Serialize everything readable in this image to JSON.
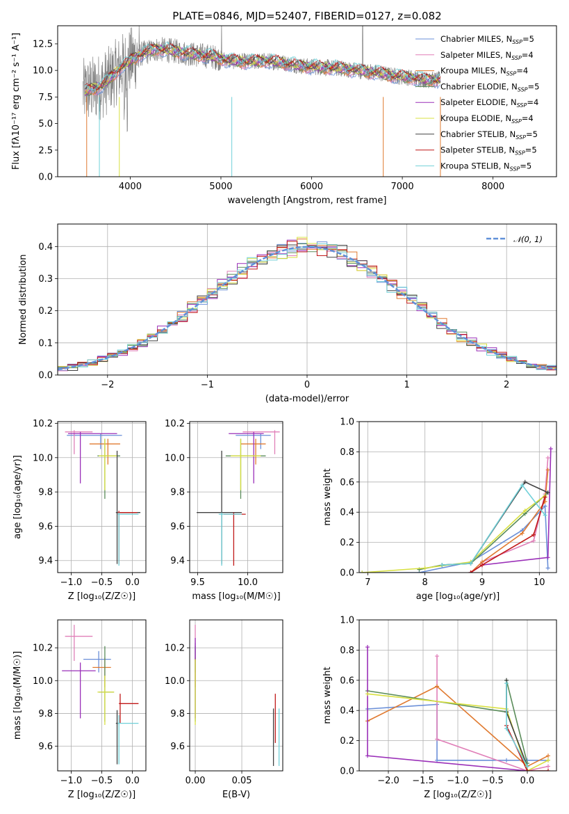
{
  "colors": {
    "spectrum_data": "#808080",
    "chabrier_miles": "#6a8fd8",
    "salpeter_miles": "#e07fb8",
    "kroupa_miles": "#e07a30",
    "chabrier_elodie": "#5a8c5a",
    "salpeter_elodie": "#9a2fb8",
    "kroupa_elodie": "#d8e040",
    "chabrier_stelib": "#404040",
    "salpeter_stelib": "#c01818",
    "kroupa_stelib": "#70d0d8",
    "normal_curve": "#6090d8"
  },
  "chart_data": [
    {
      "id": "spectrum",
      "type": "line",
      "title": "PLATE=0846, MJD=52407, FIBERID=0127, z=0.082",
      "xlabel": "wavelength [Angstrom, rest frame]",
      "ylabel": "Flux [f$_\\lambda$10$^{-17}$ erg cm$^{-2}$ s$^{-1}$ A$^{-1}$]",
      "ylabel_display": "Flux [fλ10⁻¹⁷ erg cm⁻² s⁻¹ A⁻¹]",
      "xlim": [
        3200,
        8700
      ],
      "ylim": [
        0,
        14.2
      ],
      "xticks": [
        "4000",
        "5000",
        "6000",
        "7000",
        "8000"
      ],
      "yticks": [
        "0.0",
        "2.5",
        "5.0",
        "7.5",
        "10.0",
        "12.5"
      ],
      "legend_position": "upper-right",
      "legend": [
        {
          "label": "Chabrier MILES, N",
          "sub": "SSP",
          "suffix": "=5"
        },
        {
          "label": "Salpeter MILES, N",
          "sub": "SSP",
          "suffix": "=4"
        },
        {
          "label": "Kroupa MILES, N",
          "sub": "SSP",
          "suffix": "=4"
        },
        {
          "label": "Chabrier ELODIE, N",
          "sub": "SSP",
          "suffix": "=5"
        },
        {
          "label": "Salpeter ELODIE, N",
          "sub": "SSP",
          "suffix": "=4"
        },
        {
          "label": "Kroupa ELODIE, N",
          "sub": "SSP",
          "suffix": "=4"
        },
        {
          "label": "Chabrier STELIB, N",
          "sub": "SSP",
          "suffix": "=5"
        },
        {
          "label": "Salpeter STELIB, N",
          "sub": "SSP",
          "suffix": "=5"
        },
        {
          "label": "Kroupa STELIB, N",
          "sub": "SSP",
          "suffix": "=5"
        }
      ],
      "continuum": {
        "x": [
          3500,
          3700,
          3900,
          4100,
          4300,
          4500,
          4700,
          4900,
          5100,
          5300,
          5500,
          5700,
          5900,
          6100,
          6300,
          6500,
          6700,
          6900,
          7100,
          7300,
          7420
        ],
        "y": [
          8.0,
          8.6,
          10.3,
          11.5,
          12.0,
          11.8,
          11.5,
          11.3,
          10.9,
          10.8,
          10.9,
          10.7,
          10.4,
          10.3,
          10.2,
          10.0,
          9.8,
          9.5,
          9.3,
          9.1,
          9.1
        ]
      }
    },
    {
      "id": "residuals",
      "type": "step",
      "xlabel": "(data-model)/error",
      "ylabel": "Normed distribution",
      "xlim": [
        -2.5,
        2.5
      ],
      "ylim": [
        0,
        0.47
      ],
      "xticks": [
        "-2",
        "-1",
        "0",
        "1",
        "2"
      ],
      "yticks": [
        "0.0",
        "0.1",
        "0.2",
        "0.3",
        "0.4"
      ],
      "legend": "$\\mathcal{N}(0,1)$",
      "legend_display": "𝒩(0, 1)",
      "legend_position": "upper-right",
      "grid": true,
      "bin_width": 0.1
    },
    {
      "id": "age-vs-Z",
      "type": "errorbar",
      "xlabel": "Z [log₁₀(Z/Z☉)]",
      "ylabel": "age  [log₁₀(age/yr)]",
      "xlim": [
        -1.22,
        0.22
      ],
      "ylim": [
        9.33,
        10.21
      ],
      "xticks": [
        "-1.0",
        "-0.5",
        "0.0"
      ],
      "yticks": [
        "9.4",
        "9.6",
        "9.8",
        "10.0",
        "10.2"
      ],
      "grid": true,
      "points": [
        {
          "series": "chabrier_miles",
          "x": -0.52,
          "xerr": [
            0.55,
            0.35
          ],
          "y": 10.13,
          "yerr": [
            0.08,
            0.01
          ]
        },
        {
          "series": "salpeter_miles",
          "x": -0.95,
          "xerr": [
            0.15,
            0.3
          ],
          "y": 10.15,
          "yerr": [
            0.13,
            0.01
          ]
        },
        {
          "series": "kroupa_miles",
          "x": -0.4,
          "xerr": [
            0.3,
            0.2
          ],
          "y": 10.08,
          "yerr": [
            0.12,
            0.03
          ]
        },
        {
          "series": "chabrier_elodie",
          "x": -0.45,
          "xerr": [
            0.12,
            0.25
          ],
          "y": 10.01,
          "yerr": [
            0.25,
            0.1
          ]
        },
        {
          "series": "salpeter_elodie",
          "x": -0.85,
          "xerr": [
            0.2,
            0.6
          ],
          "y": 10.14,
          "yerr": [
            0.29,
            0.01
          ]
        },
        {
          "series": "kroupa_elodie",
          "x": -0.45,
          "xerr": [
            0.1,
            0.2
          ],
          "y": 10.01,
          "yerr": [
            0.2,
            0.1
          ]
        },
        {
          "series": "chabrier_stelib",
          "x": -0.25,
          "xerr": [
            0.02,
            0.38
          ],
          "y": 9.68,
          "yerr": [
            0.3,
            0.36
          ]
        },
        {
          "series": "salpeter_stelib",
          "x": -0.22,
          "xerr": [
            0.02,
            0.3
          ],
          "y": 9.68,
          "yerr": [
            0.3,
            0.01
          ]
        },
        {
          "series": "kroupa_stelib",
          "x": -0.22,
          "xerr": [
            0.02,
            0.32
          ],
          "y": 9.67,
          "yerr": [
            0.3,
            0.01
          ]
        }
      ]
    },
    {
      "id": "age-vs-mass",
      "type": "errorbar",
      "xlabel": "mass [log₁₀(M/M☉)]",
      "xlim": [
        9.42,
        10.35
      ],
      "ylim": [
        9.33,
        10.21
      ],
      "xticks": [
        "9.5",
        "10.0"
      ],
      "yticks": [
        "9.4",
        "9.6",
        "9.8",
        "10.0",
        "10.2"
      ],
      "grid": true,
      "points": [
        {
          "series": "chabrier_miles",
          "x": 10.13,
          "xerr": [
            0.25,
            0.1
          ],
          "y": 10.13,
          "yerr": [
            0.08,
            0.01
          ]
        },
        {
          "series": "salpeter_miles",
          "x": 10.27,
          "xerr": [
            0.32,
            0.05
          ],
          "y": 10.15,
          "yerr": [
            0.13,
            0.01
          ]
        },
        {
          "series": "kroupa_miles",
          "x": 10.08,
          "xerr": [
            0.15,
            0.1
          ],
          "y": 10.08,
          "yerr": [
            0.12,
            0.03
          ]
        },
        {
          "series": "chabrier_elodie",
          "x": 9.93,
          "xerr": [
            0.15,
            0.25
          ],
          "y": 10.01,
          "yerr": [
            0.25,
            0.1
          ]
        },
        {
          "series": "salpeter_elodie",
          "x": 10.06,
          "xerr": [
            0.25,
            0.1
          ],
          "y": 10.14,
          "yerr": [
            0.29,
            0.01
          ]
        },
        {
          "series": "kroupa_elodie",
          "x": 9.93,
          "xerr": [
            0.1,
            0.2
          ],
          "y": 10.01,
          "yerr": [
            0.2,
            0.1
          ]
        },
        {
          "series": "chabrier_stelib",
          "x": 9.74,
          "xerr": [
            0.25,
            0.2
          ],
          "y": 9.68,
          "yerr": [
            0.3,
            0.36
          ]
        },
        {
          "series": "salpeter_stelib",
          "x": 9.86,
          "xerr": [
            0.1,
            0.12
          ],
          "y": 9.67,
          "yerr": [
            0.3,
            0.01
          ]
        },
        {
          "series": "kroupa_stelib",
          "x": 9.74,
          "xerr": [
            0.03,
            0.2
          ],
          "y": 9.67,
          "yerr": [
            0.3,
            0.01
          ]
        }
      ]
    },
    {
      "id": "mass-weight-vs-age",
      "type": "line",
      "xlabel": "age  [log₁₀(age/yr)]",
      "ylabel": "mass weight",
      "xlim": [
        6.85,
        10.3
      ],
      "ylim": [
        0,
        1.0
      ],
      "xticks": [
        "7",
        "8",
        "9",
        "10"
      ],
      "yticks": [
        "0.0",
        "0.2",
        "0.4",
        "0.6",
        "0.8",
        "1.0"
      ],
      "grid": true,
      "series": [
        {
          "name": "chabrier_miles",
          "x": [
            6.9,
            7.9,
            8.8,
            9.7,
            10.1,
            10.15
          ],
          "y": [
            0.0,
            0.0,
            0.07,
            0.28,
            0.44,
            0.03
          ]
        },
        {
          "name": "salpeter_miles",
          "x": [
            8.8,
            9.0,
            9.9,
            10.1,
            10.15
          ],
          "y": [
            0.0,
            0.07,
            0.21,
            0.52,
            0.76
          ]
        },
        {
          "name": "kroupa_miles",
          "x": [
            8.8,
            9.0,
            9.7,
            10.1,
            10.15
          ],
          "y": [
            0.0,
            0.07,
            0.26,
            0.47,
            0.68
          ]
        },
        {
          "name": "chabrier_elodie",
          "x": [
            7.9,
            8.3,
            8.8,
            9.75,
            10.15
          ],
          "y": [
            0.02,
            0.05,
            0.06,
            0.39,
            0.53
          ]
        },
        {
          "name": "salpeter_elodie",
          "x": [
            8.8,
            9.0,
            10.15,
            10.2
          ],
          "y": [
            0.0,
            0.05,
            0.1,
            0.82
          ]
        },
        {
          "name": "kroupa_elodie",
          "x": [
            6.9,
            8.0,
            8.8,
            9.75,
            10.1
          ],
          "y": [
            0.0,
            0.03,
            0.07,
            0.41,
            0.51
          ]
        },
        {
          "name": "chabrier_stelib",
          "x": [
            8.3,
            8.8,
            9.75,
            10.15
          ],
          "y": [
            0.05,
            0.06,
            0.6,
            0.53
          ]
        },
        {
          "name": "salpeter_stelib",
          "x": [
            8.8,
            9.0,
            9.9,
            10.1
          ],
          "y": [
            0.0,
            0.05,
            0.25,
            0.5
          ]
        },
        {
          "name": "kroupa_stelib",
          "x": [
            8.3,
            8.8,
            9.7,
            10.1
          ],
          "y": [
            0.05,
            0.06,
            0.58,
            0.38
          ]
        }
      ]
    },
    {
      "id": "mass-vs-Z",
      "type": "errorbar",
      "xlabel": "Z [log₁₀(Z/Z☉)]",
      "ylabel": "mass [log₁₀(M/M☉)]",
      "xlim": [
        -1.22,
        0.22
      ],
      "ylim": [
        9.45,
        10.37
      ],
      "xticks": [
        "-1.0",
        "-0.5",
        "0.0"
      ],
      "yticks": [
        "9.6",
        "9.8",
        "10.0",
        "10.2"
      ],
      "grid": true,
      "points": [
        {
          "series": "chabrier_miles",
          "x": -0.55,
          "xerr": [
            0.25,
            0.2
          ],
          "y": 10.13,
          "yerr": [
            0.08,
            0.05
          ]
        },
        {
          "series": "salpeter_miles",
          "x": -0.95,
          "xerr": [
            0.15,
            0.3
          ],
          "y": 10.27,
          "yerr": [
            0.15,
            0.07
          ]
        },
        {
          "series": "kroupa_miles",
          "x": -0.45,
          "xerr": [
            0.2,
            0.1
          ],
          "y": 10.08,
          "yerr": [
            0.12,
            0.06
          ]
        },
        {
          "series": "chabrier_elodie",
          "x": -0.45,
          "xerr": [
            0.1,
            0.15
          ],
          "y": 9.93,
          "yerr": [
            0.18,
            0.28
          ]
        },
        {
          "series": "salpeter_elodie",
          "x": -0.85,
          "xerr": [
            0.3,
            0.25
          ],
          "y": 10.06,
          "yerr": [
            0.29,
            0.05
          ]
        },
        {
          "series": "kroupa_elodie",
          "x": -0.45,
          "xerr": [
            0.12,
            0.15
          ],
          "y": 9.93,
          "yerr": [
            0.2,
            0.1
          ]
        },
        {
          "series": "chabrier_stelib",
          "x": -0.25,
          "xerr": [
            0.02,
            0.02
          ],
          "y": 9.74,
          "yerr": [
            0.25,
            0.08
          ]
        },
        {
          "series": "salpeter_stelib",
          "x": -0.2,
          "xerr": [
            0.02,
            0.3
          ],
          "y": 9.86,
          "yerr": [
            0.12,
            0.06
          ]
        },
        {
          "series": "kroupa_stelib",
          "x": -0.22,
          "xerr": [
            0.02,
            0.32
          ],
          "y": 9.74,
          "yerr": [
            0.25,
            0.05
          ]
        }
      ]
    },
    {
      "id": "mass-vs-ebv",
      "type": "errorbar",
      "xlabel": "E(B-V)",
      "xlim": [
        -0.006,
        0.094
      ],
      "ylim": [
        9.45,
        10.37
      ],
      "xticks": [
        "0.00",
        "0.05"
      ],
      "yticks": [
        "9.6",
        "9.8",
        "10.0",
        "10.2"
      ],
      "grid": true,
      "points": [
        {
          "series": "chabrier_miles",
          "x": 0.0,
          "xerr": [
            0,
            0
          ],
          "y": 10.13,
          "yerr": [
            0.08,
            0.1
          ]
        },
        {
          "series": "salpeter_miles",
          "x": 0.0,
          "xerr": [
            0,
            0
          ],
          "y": 10.27,
          "yerr": [
            0.15,
            0.07
          ]
        },
        {
          "series": "kroupa_miles",
          "x": 0.0,
          "xerr": [
            0,
            0
          ],
          "y": 10.08,
          "yerr": [
            0.12,
            0.06
          ]
        },
        {
          "series": "chabrier_elodie",
          "x": 0.0,
          "xerr": [
            0,
            0
          ],
          "y": 9.93,
          "yerr": [
            0.18,
            0.28
          ]
        },
        {
          "series": "salpeter_elodie",
          "x": 0.0,
          "xerr": [
            0,
            0
          ],
          "y": 10.06,
          "yerr": [
            0.29,
            0.2
          ]
        },
        {
          "series": "kroupa_elodie",
          "x": 0.0,
          "xerr": [
            0,
            0
          ],
          "y": 9.93,
          "yerr": [
            0.2,
            0.2
          ]
        },
        {
          "series": "chabrier_stelib",
          "x": 0.084,
          "xerr": [
            0,
            0
          ],
          "y": 9.66,
          "yerr": [
            0.18,
            0.17
          ]
        },
        {
          "series": "salpeter_stelib",
          "x": 0.086,
          "xerr": [
            0,
            0
          ],
          "y": 9.77,
          "yerr": [
            0.15,
            0.15
          ]
        },
        {
          "series": "kroupa_stelib",
          "x": 0.09,
          "xerr": [
            0,
            0
          ],
          "y": 9.66,
          "yerr": [
            0.18,
            0.17
          ]
        }
      ]
    },
    {
      "id": "mass-weight-vs-Z",
      "type": "line",
      "xlabel": "Z [log₁₀(Z/Z☉)]",
      "ylabel": "mass weight",
      "xlim": [
        -2.42,
        0.42
      ],
      "ylim": [
        0,
        1.0
      ],
      "xticks": [
        "-2.0",
        "-1.5",
        "-1.0",
        "-0.5",
        "0.0"
      ],
      "yticks": [
        "0.0",
        "0.2",
        "0.4",
        "0.6",
        "0.8",
        "1.0"
      ],
      "grid": true,
      "series": [
        {
          "name": "chabrier_miles",
          "x": [
            -2.3,
            -1.3,
            -1.3,
            -0.3,
            0.0,
            0.3
          ],
          "y": [
            0.41,
            0.44,
            0.07,
            0.07,
            0.07,
            0.07
          ]
        },
        {
          "name": "salpeter_miles",
          "x": [
            -1.3,
            -1.3,
            0.0,
            0.3
          ],
          "y": [
            0.76,
            0.21,
            0.0,
            0.03
          ]
        },
        {
          "name": "kroupa_miles",
          "x": [
            -2.3,
            -1.3,
            0.0,
            0.3
          ],
          "y": [
            0.33,
            0.56,
            0.03,
            0.1
          ]
        },
        {
          "name": "chabrier_elodie",
          "x": [
            -2.3,
            -0.3,
            -0.3,
            0.0
          ],
          "y": [
            0.53,
            0.39,
            0.6,
            0.05
          ]
        },
        {
          "name": "salpeter_elodie",
          "x": [
            -2.3,
            -2.3,
            0.0
          ],
          "y": [
            0.82,
            0.1,
            0.0
          ]
        },
        {
          "name": "kroupa_elodie",
          "x": [
            -2.3,
            -0.3,
            0.0,
            0.3
          ],
          "y": [
            0.51,
            0.41,
            0.0,
            0.07
          ]
        },
        {
          "name": "chabrier_stelib",
          "x": [
            -0.3,
            -0.3,
            0.0
          ],
          "y": [
            0.6,
            0.39,
            0.03
          ]
        },
        {
          "name": "salpeter_stelib",
          "x": [
            -0.3,
            0.0,
            0.3
          ],
          "y": [
            0.3,
            0.0,
            0.0
          ]
        },
        {
          "name": "kroupa_stelib",
          "x": [
            -0.3,
            -0.3,
            0.0
          ],
          "y": [
            0.58,
            0.28,
            0.03
          ]
        }
      ]
    }
  ]
}
